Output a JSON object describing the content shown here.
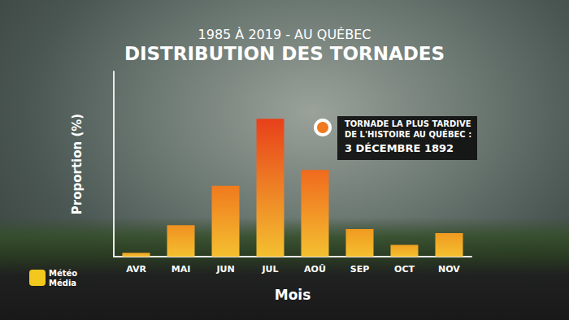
{
  "chart_data": {
    "type": "bar",
    "subtitle": "1985 À 2019 - AU QUÉBEC",
    "title": "DISTRIBUTION DES TORNADES",
    "x_label": "Mois",
    "y_label": "Proportion (%)",
    "categories": [
      "AVR",
      "MAI",
      "JUN",
      "JUL",
      "AOÛ",
      "SEP",
      "OCT",
      "NOV"
    ],
    "values": [
      1,
      8,
      18,
      35,
      22,
      7,
      3,
      6
    ],
    "colors": [
      "#f0a020",
      "#f09020",
      "#f07a1e",
      "#e8401a",
      "#f06a1e",
      "#f09a20",
      "#f0a020",
      "#f09a20"
    ],
    "ylim": [
      0,
      47
    ],
    "tick_labels": "x",
    "grid": false,
    "annotation": [
      "TORNADE LA PLUS TARDIVE",
      "DE L'HISTOIRE AU QUÉBEC :",
      "3 DÉCEMBRE 1892"
    ],
    "logo": [
      "Météo",
      "Média"
    ]
  }
}
